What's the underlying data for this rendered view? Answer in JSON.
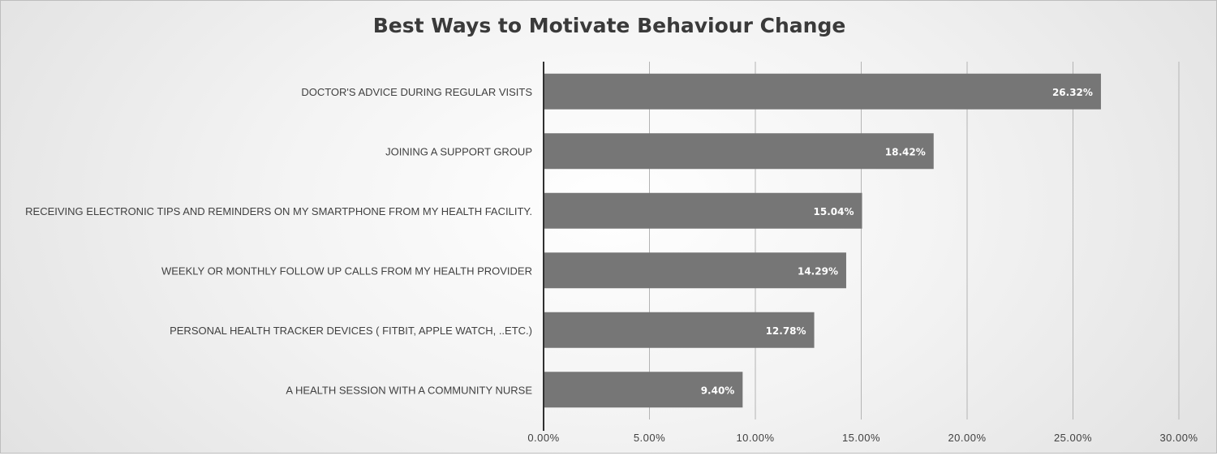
{
  "chart_data": {
    "type": "bar",
    "orientation": "horizontal",
    "title": "Best Ways to Motivate Behaviour Change",
    "xlabel": "",
    "ylabel": "",
    "categories": [
      "DOCTOR'S ADVICE DURING REGULAR VISITS",
      "JOINING A SUPPORT GROUP",
      "RECEIVING ELECTRONIC TIPS AND REMINDERS ON MY SMARTPHONE FROM MY HEALTH FACILITY.",
      "WEEKLY OR MONTHLY FOLLOW UP CALLS FROM MY HEALTH PROVIDER",
      "PERSONAL HEALTH TRACKER DEVICES ( FITBIT, APPLE WATCH, ..ETC.)",
      "A HEALTH SESSION WITH A COMMUNITY NURSE"
    ],
    "values": [
      26.32,
      18.42,
      15.04,
      14.29,
      12.78,
      9.4
    ],
    "data_labels": [
      "26.32%",
      "18.42%",
      "15.04%",
      "14.29%",
      "12.78%",
      "9.40%"
    ],
    "xlim": [
      0,
      30
    ],
    "x_ticks": [
      0,
      5,
      10,
      15,
      20,
      25,
      30
    ],
    "x_tick_labels": [
      "0.00%",
      "5.00%",
      "10.00%",
      "15.00%",
      "20.00%",
      "25.00%",
      "30.00%"
    ],
    "grid": true,
    "legend": "none",
    "colors": {
      "bar": "#767676",
      "grid": "#b4b4b4",
      "axis": "#303030",
      "label_text": "#404040",
      "data_label_text": "#ffffff"
    }
  }
}
